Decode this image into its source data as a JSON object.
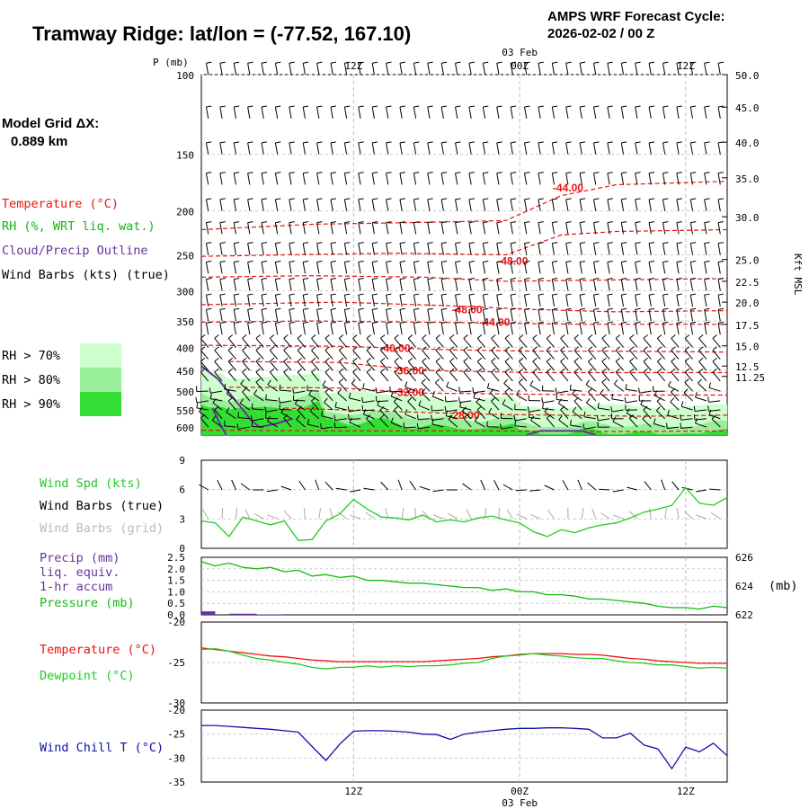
{
  "header": {
    "title": "Tramway Ridge:  lat/lon = (-77.52, 167.10)",
    "cycle_line1": "AMPS WRF Forecast Cycle:",
    "cycle_line2": "2026-02-02 / 00  Z",
    "grid_label": "Model Grid ΔX:",
    "grid_value": "0.889 km"
  },
  "time_axis": {
    "hours_total": 38,
    "ticks": [
      {
        "hour": 11,
        "label": "12Z"
      },
      {
        "hour": 23,
        "label": "00Z"
      },
      {
        "hour": 35,
        "label": "12Z"
      }
    ],
    "date_label": "03 Feb"
  },
  "legends": {
    "temperature": "Temperature (°C)",
    "rh": "RH (%, WRT liq. wat.)",
    "cloud": "Cloud/Precip Outline",
    "barbs": "Wind Barbs (kts) (true)",
    "rh70": "RH > 70%",
    "rh80": "RH > 80%",
    "rh90": "RH > 90%",
    "wspd": "Wind Spd (kts)",
    "barbs_true": "Wind Barbs (true)",
    "barbs_grid": "Wind Barbs (grid)",
    "precip1": "Precip (mm)",
    "precip2": "liq. equiv.",
    "precip3": "1-hr accum",
    "pressure": "Pressure (mb)",
    "pressure_unit": "(mb)",
    "temp2": "Temperature (°C)",
    "dewpoint": "Dewpoint (°C)",
    "windchill": "Wind Chill T (°C)"
  },
  "colors": {
    "temperature": "#ee1111",
    "rh70": "#ccffcc",
    "rh80": "#99ee99",
    "rh90": "#33dd33",
    "cloud": "#663399",
    "wind_speed": "#22cc22",
    "barbs_grid": "#aaaaaa",
    "pressure": "#11bb11",
    "dewpoint": "#22cc22",
    "windchill": "#1111aa",
    "precip": "#663399"
  },
  "chart_data": [
    {
      "type": "line",
      "name": "skewt-timeheight",
      "y_axis_label": "P (mb)",
      "pressure_ticks": [
        "100",
        "150",
        "200",
        "250",
        "300",
        "350",
        "400",
        "450",
        "500",
        "550",
        "600"
      ],
      "height_axis_label": "Kft MSL",
      "height_ticks": [
        {
          "p": 100,
          "label": "50.0"
        },
        {
          "p": 118,
          "label": "45.0"
        },
        {
          "p": 141,
          "label": "40.0"
        },
        {
          "p": 169,
          "label": "35.0"
        },
        {
          "p": 206,
          "label": "30.0"
        },
        {
          "p": 256,
          "label": "25.0"
        },
        {
          "p": 286,
          "label": "22.5"
        },
        {
          "p": 318,
          "label": "20.0"
        },
        {
          "p": 356,
          "label": "17.5"
        },
        {
          "p": 397,
          "label": "15.0"
        },
        {
          "p": 440,
          "label": "12.5"
        },
        {
          "p": 464,
          "label": "11.25"
        }
      ],
      "temperature_contour_labels": [
        {
          "hour": 26.5,
          "p": 178,
          "label": "-44.00"
        },
        {
          "hour": 22.5,
          "p": 258,
          "label": "-48.00"
        },
        {
          "hour": 19.2,
          "p": 330,
          "label": "-48.00"
        },
        {
          "hour": 21.2,
          "p": 352,
          "label": "-44.00"
        },
        {
          "hour": 14.0,
          "p": 402,
          "label": "-40.00"
        },
        {
          "hour": 15.0,
          "p": 451,
          "label": "-36.00"
        },
        {
          "hour": 15.0,
          "p": 503,
          "label": "-32.00"
        },
        {
          "hour": 19.0,
          "p": 565,
          "label": "-28.00"
        }
      ]
    },
    {
      "type": "line",
      "name": "wind-speed",
      "ylim": [
        0,
        9
      ],
      "y_ticks": [
        "0",
        "3",
        "6",
        "9"
      ],
      "series": [
        {
          "name": "Wind Spd (kts)",
          "values": [
            2.8,
            2.6,
            1.2,
            3.2,
            2.8,
            2.4,
            2.8,
            0.8,
            0.9,
            2.8,
            3.5,
            5.0,
            4.0,
            3.2,
            3.1,
            2.9,
            3.4,
            2.7,
            2.9,
            2.7,
            3.1,
            3.3,
            2.9,
            2.6,
            1.7,
            1.2,
            1.9,
            1.6,
            2.1,
            2.4,
            2.6,
            3.1,
            3.7,
            4.0,
            4.4,
            6.2,
            4.6,
            4.4,
            5.2
          ]
        }
      ]
    },
    {
      "type": "line",
      "name": "precip-pressure",
      "precip_ylim": [
        0,
        2.5
      ],
      "precip_ticks": [
        "0.0",
        "0.5",
        "1.0",
        "1.5",
        "2.0",
        "2.5"
      ],
      "pressure_ylim": [
        622,
        626
      ],
      "pressure_ticks": [
        "622",
        "624",
        "626"
      ],
      "series": [
        {
          "name": "Pressure (mb)",
          "values": [
            625.7,
            625.4,
            625.6,
            625.3,
            625.2,
            625.3,
            625.0,
            625.1,
            624.7,
            624.8,
            624.6,
            624.7,
            624.4,
            624.4,
            624.3,
            624.2,
            624.2,
            624.1,
            624.0,
            623.9,
            623.9,
            623.7,
            623.8,
            623.6,
            623.6,
            623.4,
            623.4,
            623.3,
            623.1,
            623.1,
            623.0,
            622.9,
            622.8,
            622.6,
            622.5,
            622.5,
            622.4,
            622.6,
            622.5
          ]
        },
        {
          "name": "Precip (mm)",
          "values": [
            0.15,
            0.0,
            0.05,
            0.05,
            0.02,
            0.02,
            0.0,
            0.0,
            0,
            0,
            0,
            0,
            0,
            0,
            0,
            0,
            0,
            0,
            0,
            0,
            0,
            0,
            0,
            0,
            0,
            0,
            0,
            0,
            0,
            0,
            0,
            0,
            0,
            0,
            0,
            0,
            0,
            0
          ]
        }
      ]
    },
    {
      "type": "line",
      "name": "temperature-dewpoint",
      "ylim": [
        -30,
        -20
      ],
      "y_ticks": [
        "-20",
        "-25",
        "-30"
      ],
      "series": [
        {
          "name": "Temperature (°C)",
          "values": [
            -23.2,
            -23.4,
            -23.6,
            -23.8,
            -24.0,
            -24.2,
            -24.3,
            -24.5,
            -24.7,
            -24.8,
            -24.9,
            -24.9,
            -24.9,
            -24.9,
            -24.9,
            -24.9,
            -24.9,
            -24.8,
            -24.7,
            -24.6,
            -24.5,
            -24.3,
            -24.2,
            -24.0,
            -23.9,
            -23.9,
            -23.9,
            -24.0,
            -24.0,
            -24.1,
            -24.3,
            -24.5,
            -24.6,
            -24.8,
            -24.9,
            -25.0,
            -25.1,
            -25.1,
            -25.1
          ]
        },
        {
          "name": "Dewpoint (°C)",
          "values": [
            -23.4,
            -23.3,
            -23.6,
            -24.1,
            -24.5,
            -24.7,
            -25.0,
            -25.2,
            -25.6,
            -25.8,
            -25.6,
            -25.6,
            -25.4,
            -25.6,
            -25.4,
            -25.5,
            -25.4,
            -25.4,
            -25.3,
            -25.1,
            -25.0,
            -24.5,
            -24.2,
            -24.1,
            -23.9,
            -24.1,
            -24.2,
            -24.4,
            -24.5,
            -24.5,
            -24.8,
            -25.0,
            -25.1,
            -25.3,
            -25.3,
            -25.5,
            -25.7,
            -25.6,
            -25.7
          ]
        }
      ]
    },
    {
      "type": "line",
      "name": "wind-chill",
      "ylim": [
        -35,
        -20
      ],
      "y_ticks": [
        "-20",
        "-25",
        "-30",
        "-35"
      ],
      "series": [
        {
          "name": "Wind Chill T (°C)",
          "values": [
            -23.2,
            -23.2,
            -23.4,
            -23.6,
            -23.8,
            -24.0,
            -24.3,
            -24.6,
            -27.6,
            -30.5,
            -27.1,
            -24.4,
            -24.3,
            -24.3,
            -24.4,
            -24.6,
            -25.0,
            -25.1,
            -26.1,
            -25.0,
            -24.6,
            -24.3,
            -24.0,
            -23.8,
            -23.8,
            -23.7,
            -23.7,
            -23.8,
            -24.0,
            -25.8,
            -25.8,
            -24.8,
            -27.3,
            -28.1,
            -32.2,
            -27.7,
            -28.7,
            -26.9,
            -29.5
          ]
        }
      ]
    }
  ]
}
